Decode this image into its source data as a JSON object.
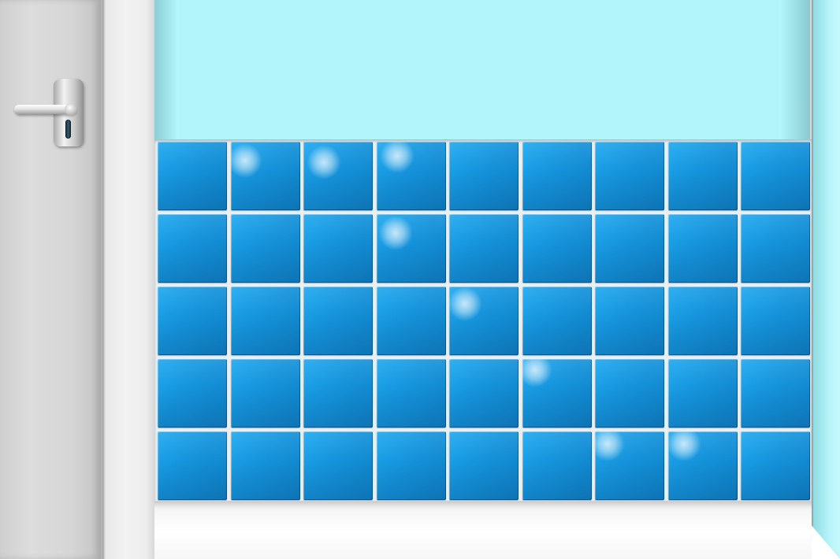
{
  "scene": {
    "tile_grid": {
      "rows": 5,
      "columns": 9
    },
    "colors": {
      "wall": "#b2f6fb",
      "tile": "#1593db",
      "grout": "#e9f0f2",
      "door": "#d6d6d6",
      "floor": "#f4f4f4"
    },
    "icons": {
      "door_handle": "door-handle-icon",
      "keyhole": "keyhole-icon",
      "sparkle": "sparkle-icon"
    },
    "sparkle_tiles": [
      {
        "row": 0,
        "col": 1
      },
      {
        "row": 0,
        "col": 2
      },
      {
        "row": 0,
        "col": 3
      },
      {
        "row": 1,
        "col": 3
      },
      {
        "row": 2,
        "col": 4
      },
      {
        "row": 3,
        "col": 5
      },
      {
        "row": 4,
        "col": 6
      },
      {
        "row": 4,
        "col": 7
      }
    ]
  }
}
